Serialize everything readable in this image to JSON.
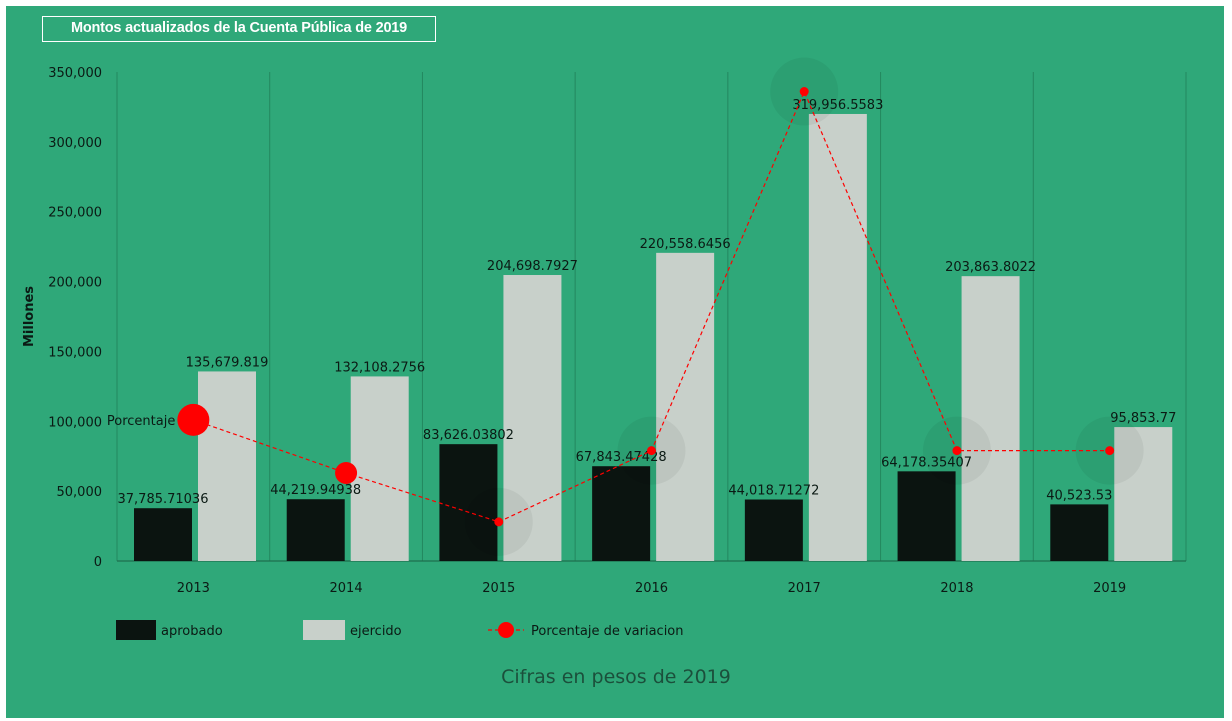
{
  "title": "Montos actualizados de la Cuenta Pública de 2019",
  "footnote": "Cifras en pesos de 2019",
  "colors": {
    "background": "#2fa879",
    "aprobado": "#0b1410",
    "ejercido": "#c8d0ca",
    "variacion": "#ff0000"
  },
  "chart_data": {
    "type": "bar",
    "ylabel": "Millones",
    "ylim": [
      0,
      350000
    ],
    "yticks": [
      "0",
      "50,000",
      "100,000",
      "150,000",
      "200,000",
      "250,000",
      "300,000",
      "350,000"
    ],
    "ytick_values": [
      0,
      50000,
      100000,
      150000,
      200000,
      250000,
      300000,
      350000
    ],
    "categories": [
      "2013",
      "2014",
      "2015",
      "2016",
      "2017",
      "2018",
      "2019"
    ],
    "grid": "vertical",
    "legend_position": "bottom-left",
    "series": [
      {
        "name": "aprobado",
        "type": "bar",
        "values": [
          37785.71036,
          44219.94938,
          83626.03802,
          67843.47428,
          44018.71272,
          64178.35407,
          40523.53
        ],
        "labels": [
          "37,785.71036",
          "44,219.94938",
          "83,626.03802",
          "67,843.47428",
          "44,018.71272",
          "64,178.35407",
          "40,523.53"
        ]
      },
      {
        "name": "ejercido",
        "type": "bar",
        "values": [
          135679.819,
          132108.2756,
          204698.7927,
          220558.6456,
          319956.5583,
          203863.8022,
          95853.77
        ],
        "labels": [
          "135,679.819",
          "132,108.2756",
          "204,698.7927",
          "220,558.6456",
          "319,956.5583",
          "203,863.8022",
          "95,853.77"
        ]
      },
      {
        "name": "Porcentaje de variacion",
        "type": "line",
        "values": [
          101000,
          63000,
          28000,
          79000,
          336000,
          79000,
          79000
        ]
      }
    ],
    "annotations": [
      {
        "text": "Porcentaje",
        "category": "2013"
      }
    ]
  }
}
